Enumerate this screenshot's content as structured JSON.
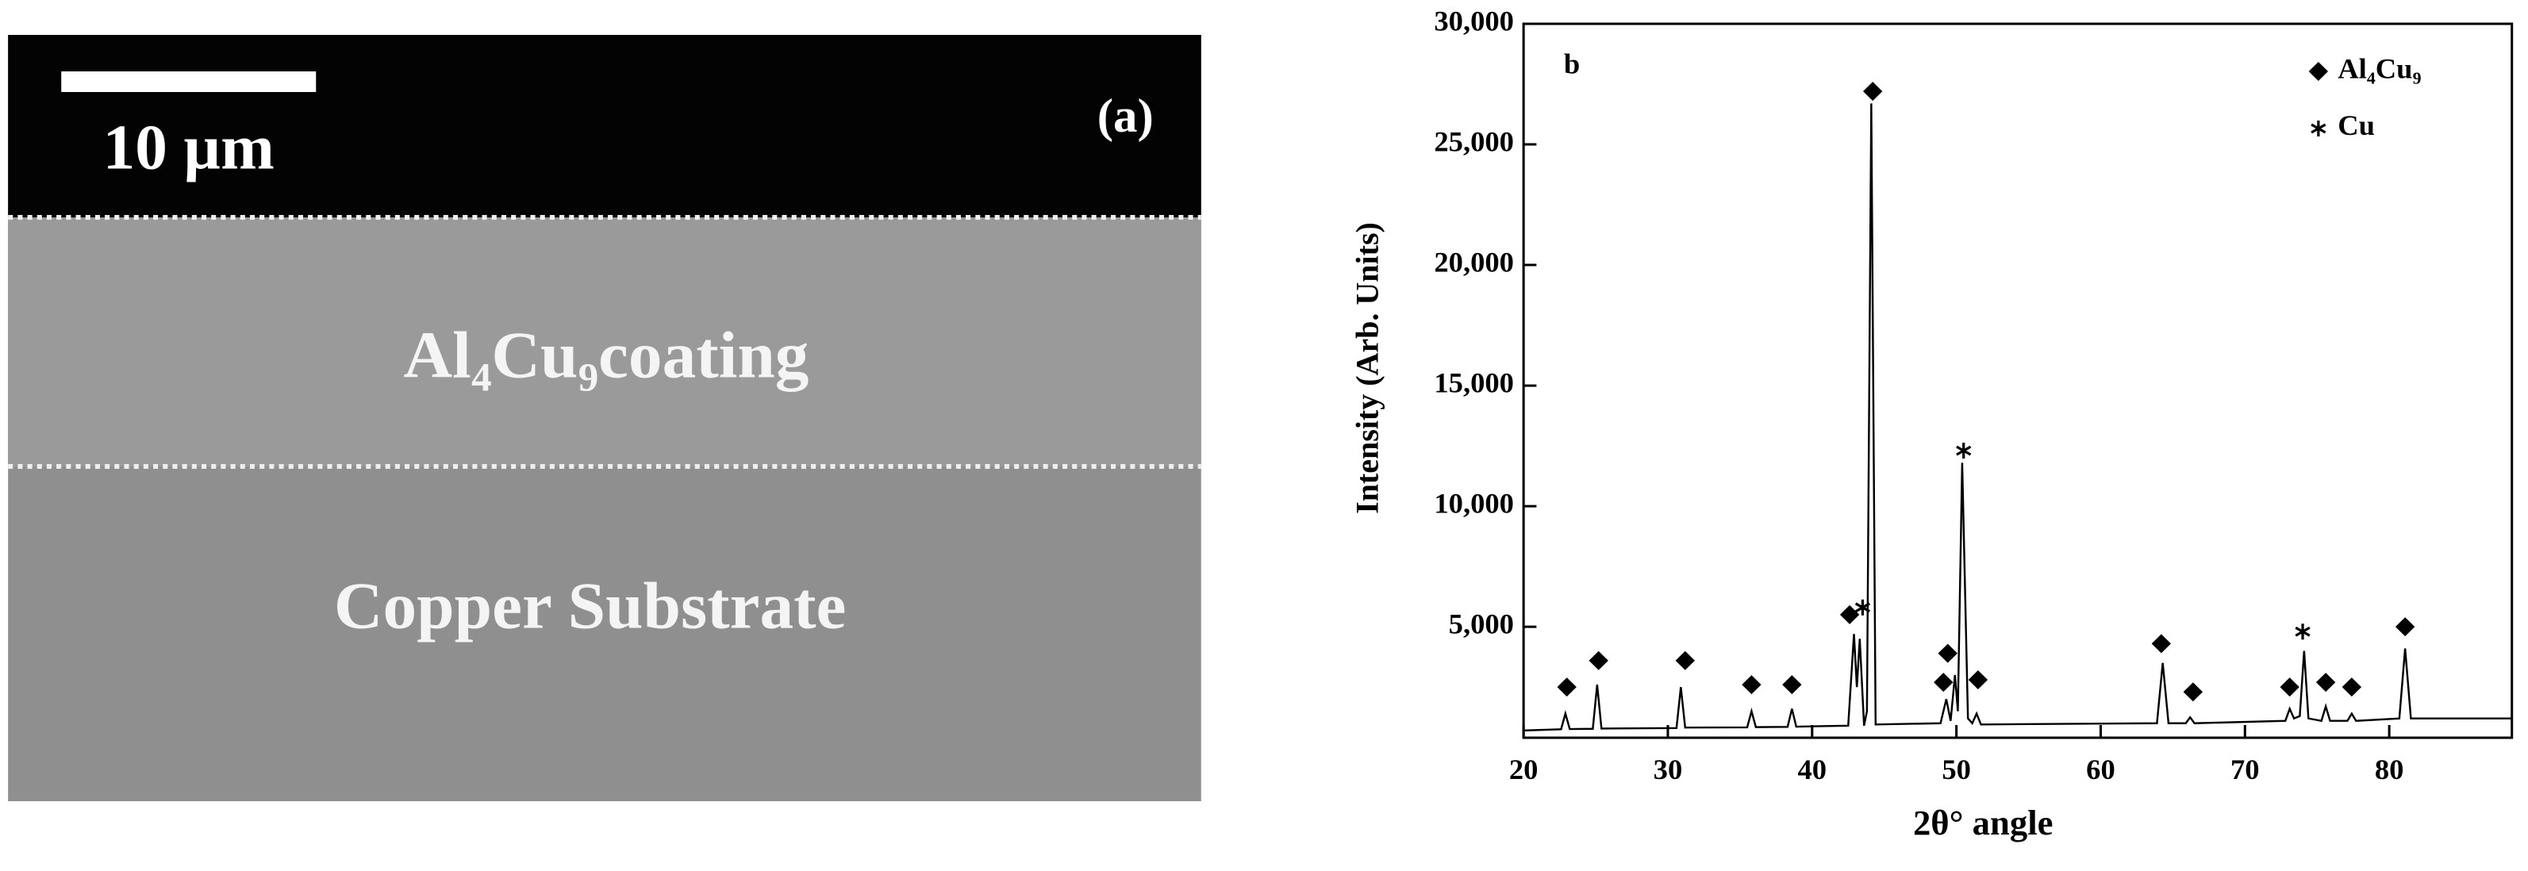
{
  "micrograph": {
    "scale_bar": "10 µm",
    "label": "(a)",
    "layers": [
      "Al₄Cu₉coating",
      "Copper Substrate"
    ]
  },
  "chart_data": {
    "type": "line",
    "panel_label": "b",
    "x_label": "2θ° angle",
    "y_label": "Intensity (Arb. Units)",
    "x": [
      20,
      22.6,
      22.9,
      23.2,
      24.8,
      25.1,
      25.4,
      30.6,
      30.9,
      31.2,
      35.5,
      35.8,
      36.1,
      38.3,
      38.6,
      38.9,
      42.5,
      42.9,
      43.1,
      43.3,
      43.6,
      43.8,
      44.1,
      44.4,
      48.9,
      49.3,
      49.6,
      49.9,
      50.1,
      50.4,
      50.8,
      51.1,
      51.4,
      51.7,
      63.9,
      64.3,
      64.7,
      65.9,
      66.2,
      66.5,
      72.8,
      73.1,
      73.4,
      73.8,
      74.1,
      74.4,
      75.3,
      75.6,
      75.9,
      77.1,
      77.4,
      77.7,
      80.7,
      81.1,
      81.5,
      88.5
    ],
    "values": [
      700,
      750,
      1400,
      760,
      770,
      2600,
      780,
      800,
      2500,
      820,
      830,
      1500,
      840,
      850,
      1600,
      860,
      900,
      4700,
      2500,
      4500,
      900,
      1500,
      26700,
      950,
      1000,
      2000,
      1100,
      3000,
      1500,
      11800,
      1200,
      1000,
      1400,
      950,
      1000,
      3500,
      1000,
      1000,
      1250,
      1000,
      1100,
      1600,
      1200,
      1300,
      4000,
      1200,
      1100,
      1700,
      1100,
      1100,
      1400,
      1100,
      1200,
      4100,
      1200,
      1200
    ],
    "color": "#000000",
    "markers": [
      {
        "name": "Al₄Cu₉",
        "symbol": "diamond",
        "color": "#000000",
        "x": [
          23.0,
          25.2,
          31.2,
          35.8,
          38.6,
          42.6,
          44.2,
          49.1,
          49.4,
          51.5,
          64.2,
          66.4,
          73.1,
          75.6,
          77.4,
          81.1
        ],
        "values": [
          2500,
          3600,
          3600,
          2600,
          2600,
          5500,
          27200,
          2700,
          3900,
          2800,
          4300,
          2300,
          2500,
          2700,
          2500,
          5000
        ]
      },
      {
        "name": "Cu",
        "symbol": "asterisk",
        "color": "#000000",
        "x": [
          43.5,
          50.5,
          74.0
        ],
        "values": [
          5800,
          12300,
          4800
        ]
      }
    ],
    "xlim": [
      20,
      88.5
    ],
    "xticks": [
      20,
      30,
      40,
      50,
      60,
      70,
      80
    ],
    "ylim": [
      400,
      30000
    ],
    "yticks": [
      {
        "value": 5000,
        "label": "5,000"
      },
      {
        "value": 10000,
        "label": "10,000"
      },
      {
        "value": 15000,
        "label": "15,000"
      },
      {
        "value": 20000,
        "label": "20,000"
      },
      {
        "value": 25000,
        "label": "25,000"
      },
      {
        "value": 30000,
        "label": "30,000"
      }
    ],
    "legend": "top-right"
  }
}
